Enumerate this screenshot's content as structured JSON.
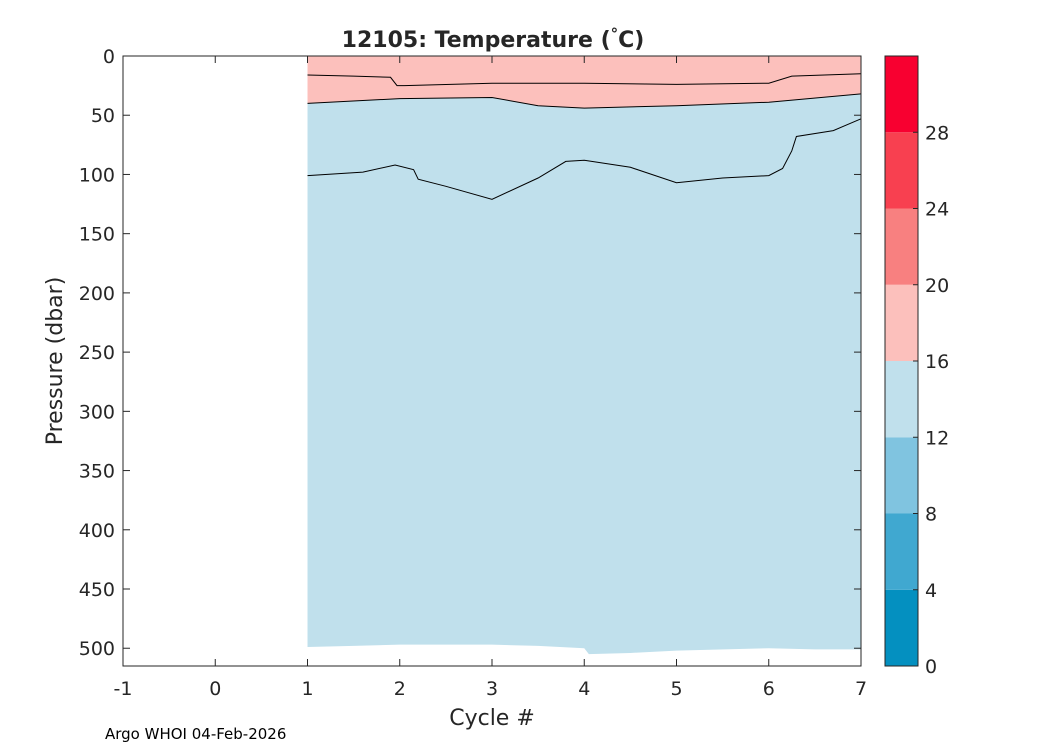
{
  "footer": "Argo WHOI 04-Feb-2026",
  "chart_data": {
    "type": "contour",
    "title_id": "12105:",
    "title_var": "Temperature (",
    "title_degree": "°",
    "title_unit": "C)",
    "xlabel": "Cycle #",
    "ylabel": "Pressure (dbar)",
    "xlim": [
      -1,
      7
    ],
    "ylim": [
      0,
      515
    ],
    "y_reversed": true,
    "xticks": [
      -1,
      0,
      1,
      2,
      3,
      4,
      5,
      6,
      7
    ],
    "yticks": [
      0,
      50,
      100,
      150,
      200,
      250,
      300,
      350,
      400,
      450,
      500
    ],
    "colorbar": {
      "range": [
        0,
        32
      ],
      "ticks": [
        0,
        4,
        8,
        12,
        16,
        20,
        24,
        28
      ],
      "bands": [
        {
          "from": 0,
          "to": 4,
          "color": "#0490c0"
        },
        {
          "from": 4,
          "to": 8,
          "color": "#40a8d0"
        },
        {
          "from": 8,
          "to": 12,
          "color": "#80c4e0"
        },
        {
          "from": 12,
          "to": 16,
          "color": "#c0e0ec"
        },
        {
          "from": 16,
          "to": 20,
          "color": "#fcc0bc"
        },
        {
          "from": 20,
          "to": 24,
          "color": "#f88080"
        },
        {
          "from": 24,
          "to": 28,
          "color": "#f84050"
        },
        {
          "from": 28,
          "to": 32,
          "color": "#f80030"
        }
      ]
    },
    "data_extent": {
      "x": [
        1,
        7
      ],
      "bottom_pressure": [
        [
          1,
          499
        ],
        [
          1.5,
          498
        ],
        [
          2,
          497
        ],
        [
          3,
          497
        ],
        [
          3.5,
          498
        ],
        [
          4,
          500
        ],
        [
          4.05,
          505
        ],
        [
          4.5,
          504
        ],
        [
          5,
          502
        ],
        [
          6,
          500
        ],
        [
          6.5,
          501
        ],
        [
          7,
          501
        ]
      ]
    },
    "surface_band": {
      "from": 16,
      "to": 20,
      "color": "#fcc0bc",
      "note": "top layer"
    },
    "contours": [
      {
        "level": 18,
        "points": [
          [
            1,
            16
          ],
          [
            1.5,
            17
          ],
          [
            1.9,
            18
          ],
          [
            1.97,
            25
          ],
          [
            2.05,
            25
          ],
          [
            3,
            23
          ],
          [
            4,
            23
          ],
          [
            5,
            24
          ],
          [
            6,
            23
          ],
          [
            6.25,
            17
          ],
          [
            7,
            15
          ]
        ]
      },
      {
        "level": 16,
        "points": [
          [
            1,
            40
          ],
          [
            2,
            36
          ],
          [
            3,
            35
          ],
          [
            3.5,
            42
          ],
          [
            4,
            44
          ],
          [
            5,
            42
          ],
          [
            6,
            39
          ],
          [
            7,
            32
          ]
        ]
      },
      {
        "level": 14,
        "points": [
          [
            1,
            101
          ],
          [
            1.6,
            98
          ],
          [
            1.95,
            92
          ],
          [
            2.15,
            96
          ],
          [
            2.2,
            104
          ],
          [
            2.5,
            110
          ],
          [
            3,
            121
          ],
          [
            3.5,
            103
          ],
          [
            3.8,
            89
          ],
          [
            4,
            88
          ],
          [
            4.5,
            94
          ],
          [
            5,
            107
          ],
          [
            5.5,
            103
          ],
          [
            6,
            101
          ],
          [
            6.15,
            95
          ],
          [
            6.25,
            80
          ],
          [
            6.3,
            68
          ],
          [
            6.7,
            63
          ],
          [
            7,
            53
          ]
        ]
      }
    ]
  }
}
